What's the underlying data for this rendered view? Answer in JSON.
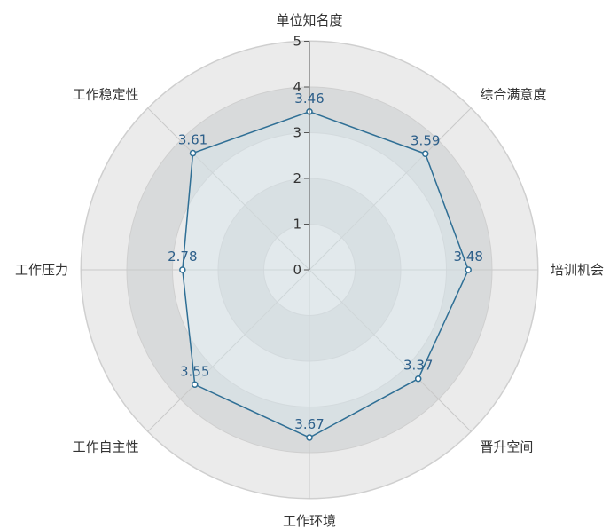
{
  "chart_data": {
    "type": "radar",
    "title": "",
    "categories": [
      "单位知名度",
      "综合满意度",
      "培训机会",
      "晋升空间",
      "工作环境",
      "工作自主性",
      "工作压力",
      "工作稳定性"
    ],
    "series": [
      {
        "values": [
          3.46,
          3.59,
          3.48,
          3.37,
          3.67,
          3.55,
          2.78,
          3.61
        ]
      }
    ],
    "value_labels": [
      "3.46",
      "3.59",
      "3.48",
      "3.37",
      "3.67",
      "3.55",
      "2.78",
      "3.61"
    ],
    "radial_range": [
      0,
      5
    ],
    "radial_ticks": [
      "0",
      "1",
      "2",
      "3",
      "4",
      "5"
    ],
    "grid": true,
    "legend": "none",
    "colors": {
      "series_line": "#2f6f95",
      "series_fill": "#d8e6ee",
      "value_label": "#2d5f8a",
      "band_dark": "#d8dadb",
      "band_light": "#ebebeb",
      "band_outer": "#f7f7f7",
      "text": "#333333"
    }
  }
}
